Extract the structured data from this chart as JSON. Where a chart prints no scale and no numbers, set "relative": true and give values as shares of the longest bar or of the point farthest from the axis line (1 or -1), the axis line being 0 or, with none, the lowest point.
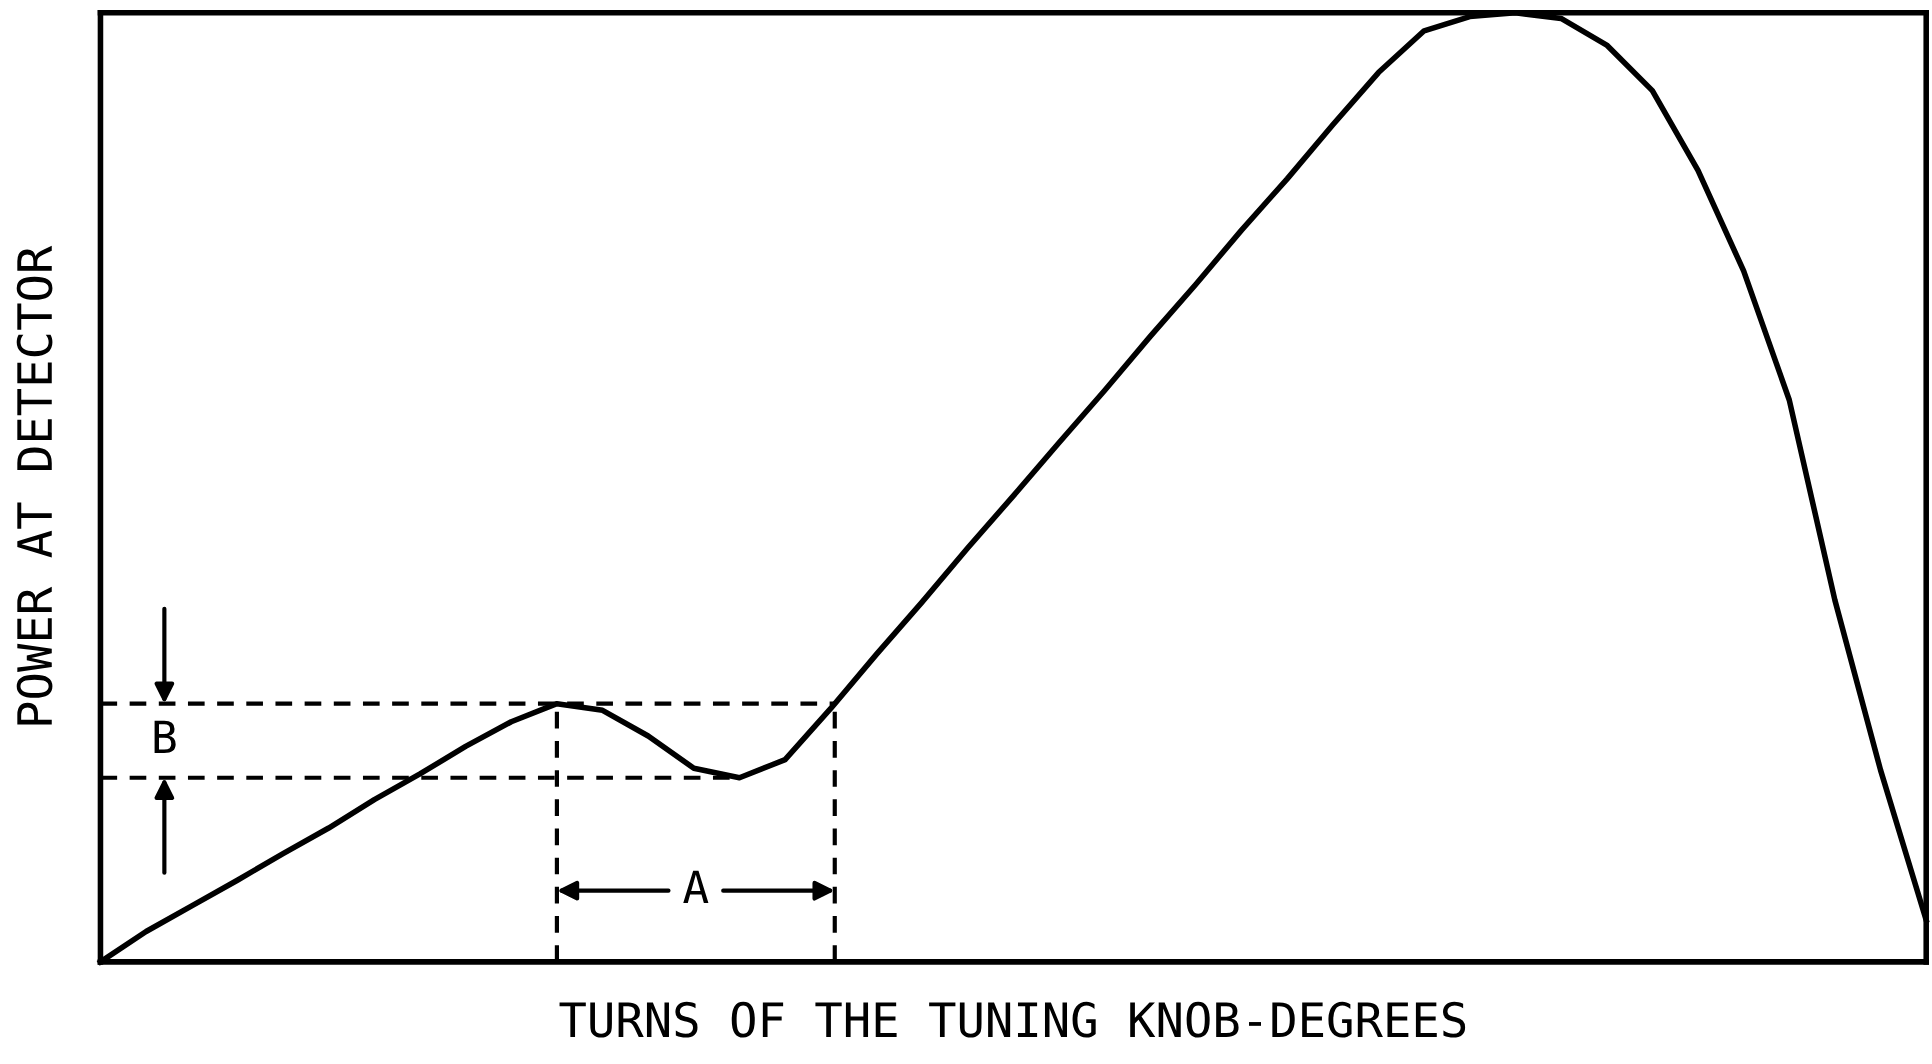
{
  "chart_data": {
    "type": "line",
    "relative": true,
    "xlabel": "TURNS OF THE TUNING KNOB-DEGREES",
    "ylabel": "POWER AT DETECTOR",
    "annotations": [
      "A",
      "B"
    ],
    "marker": "none",
    "line_style": "solid",
    "tick_labels": false,
    "categories": [
      null,
      null,
      null,
      null,
      null,
      null,
      null,
      null,
      null,
      null,
      null,
      null,
      null,
      null,
      null,
      null,
      null,
      null,
      null,
      null,
      null,
      null,
      null,
      null,
      null,
      null,
      null,
      null,
      null,
      null,
      null,
      null,
      null,
      null,
      null,
      null,
      null,
      null,
      null,
      null,
      null
    ],
    "series": [
      {
        "color": "#000000",
        "values": [
          0,
          0.032,
          0.059,
          0.086,
          0.114,
          0.141,
          0.171,
          0.198,
          0.227,
          0.253,
          0.272,
          0.265,
          0.238,
          0.204,
          0.194,
          0.213,
          0.267,
          0.324,
          0.379,
          0.436,
          0.491,
          0.547,
          0.602,
          0.659,
          0.714,
          0.771,
          0.825,
          0.882,
          0.937,
          0.981,
          0.996,
          1,
          0.994,
          0.966,
          0.918,
          0.834,
          0.728,
          0.592,
          0.381,
          0.202,
          0.044
        ]
      }
    ]
  }
}
